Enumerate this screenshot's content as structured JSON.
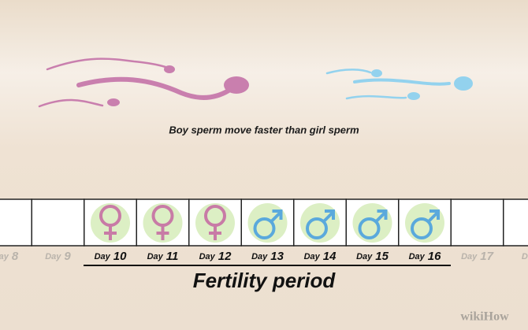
{
  "caption": "Boy sperm move faster than girl sperm",
  "days": [
    {
      "word": "Day",
      "number": "8",
      "symbol": "none",
      "fertile": false
    },
    {
      "word": "Day",
      "number": "9",
      "symbol": "none",
      "fertile": false
    },
    {
      "word": "Day",
      "number": "10",
      "symbol": "female",
      "fertile": true
    },
    {
      "word": "Day",
      "number": "11",
      "symbol": "female",
      "fertile": true
    },
    {
      "word": "Day",
      "number": "12",
      "symbol": "female",
      "fertile": true
    },
    {
      "word": "Day",
      "number": "13",
      "symbol": "male",
      "fertile": true
    },
    {
      "word": "Day",
      "number": "14",
      "symbol": "male",
      "fertile": true
    },
    {
      "word": "Day",
      "number": "15",
      "symbol": "male",
      "fertile": true
    },
    {
      "word": "Day",
      "number": "16",
      "symbol": "male",
      "fertile": true
    },
    {
      "word": "Day",
      "number": "17",
      "symbol": "none",
      "fertile": false
    },
    {
      "word": "Day",
      "symbol": "none",
      "fertile": false
    }
  ],
  "period_label": "Fertility period",
  "watermark": "wikiHow"
}
